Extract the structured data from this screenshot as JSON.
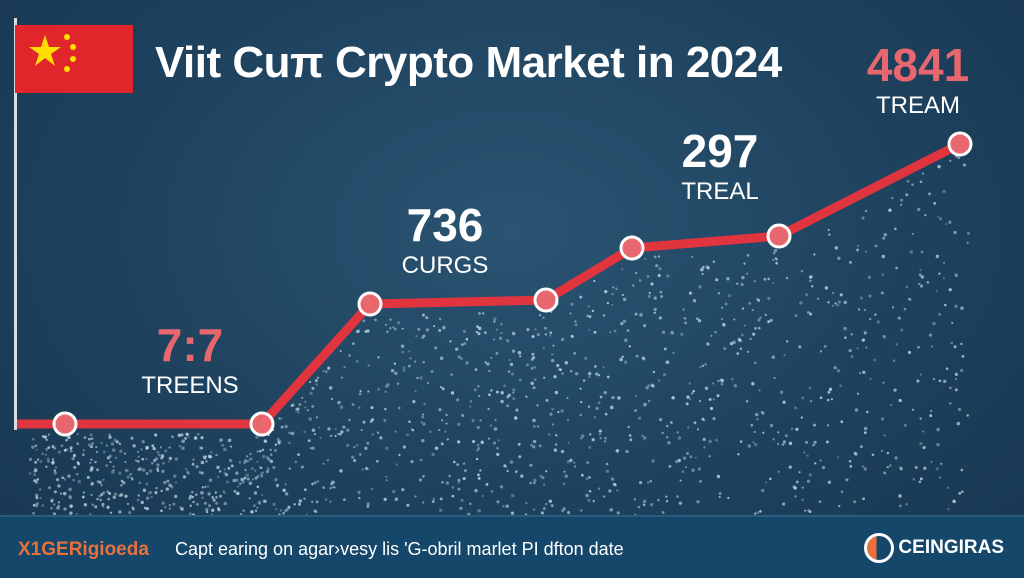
{
  "title": "Viit Cuπ Crypto Market in 2024",
  "colors": {
    "line": "#e0343f",
    "marker_fill": "#e8676f",
    "accent_number": "#e8676f",
    "background": "#1e425e",
    "footer": "#15476a",
    "brand": "#e8713b"
  },
  "annotations": [
    {
      "value": "7:7",
      "caption": "TREENS",
      "color": "#e8676f"
    },
    {
      "value": "736",
      "caption": "CURGS",
      "color": "#ffffff"
    },
    {
      "value": "297",
      "caption": "TREAL",
      "color": "#ffffff"
    },
    {
      "value": "4841",
      "caption": "TREAM",
      "color": "#e8676f"
    }
  ],
  "footer": {
    "brand": "X1GERigioeda",
    "tagline": "Capt earing on agar›vesy lis 'G-obril marlet PI dfton date",
    "logo_text": "CEINGIRAS"
  },
  "chart_data": {
    "type": "line",
    "title": "Viit Cuπ Crypto Market in 2024",
    "x": [
      1,
      2,
      3,
      4,
      5,
      6,
      7
    ],
    "series": [
      {
        "name": "market",
        "values": [
          19,
          19,
          49,
          50,
          63,
          66,
          89
        ]
      }
    ],
    "xlim": [
      0.6,
      7.4
    ],
    "ylim": [
      0,
      100
    ],
    "grid": false,
    "xlabel": "",
    "ylabel": ""
  }
}
